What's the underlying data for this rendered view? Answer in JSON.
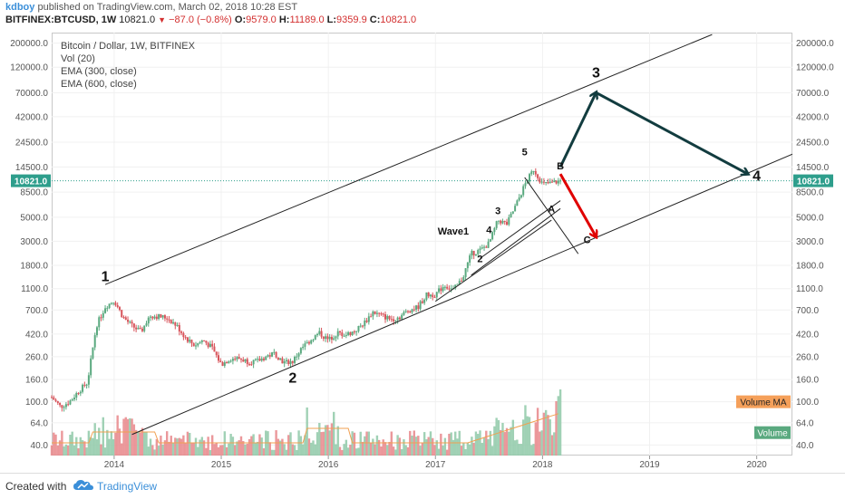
{
  "header": {
    "author": "kdboy",
    "published_text": "published on TradingView.com, March 02, 2018 10:28 EST",
    "symbol": "BITFINEX:BTCUSD, 1W",
    "last_value": "10821.0",
    "change": "−87.0 (−0.8%)",
    "ohlc_open_label": "O:",
    "ohlc_open": "9579.0",
    "ohlc_high_label": "H:",
    "ohlc_high": "11189.0",
    "ohlc_low_label": "L:",
    "ohlc_low": "9359.9",
    "ohlc_close_label": "C:",
    "ohlc_close": "10821.0"
  },
  "legend": {
    "title": "Bitcoin / Dollar, 1W, BITFINEX",
    "vol": "Vol (20)",
    "ema300": "EMA (300, close)",
    "ema600": "EMA (600, close)"
  },
  "footer": {
    "created_with": "Created with",
    "brand": "TradingView"
  },
  "colors": {
    "up": "#8fc9a8",
    "down": "#e8868a",
    "arrow_up": "#123c3f",
    "arrow_down": "#e00000",
    "price_line": "#2e9e8c",
    "vol_ma": "#f0a050",
    "ema300": "#f0a050",
    "ema600": "#86b4e6"
  },
  "chart_data": {
    "type": "candlestick",
    "title": "Bitcoin / Dollar, 1W, BITFINEX",
    "y_scale": "log",
    "ylim": [
      32,
      250000
    ],
    "y_ticks": [
      "200000.0",
      "120000.0",
      "70000.0",
      "42000.0",
      "24500.0",
      "14500.0",
      "8500.0",
      "5000.0",
      "3000.0",
      "1800.0",
      "1100.0",
      "700.0",
      "420.0",
      "260.0",
      "160.0",
      "100.0",
      "64.0",
      "40.0"
    ],
    "x_ticks": [
      "2014",
      "2015",
      "2016",
      "2017",
      "2018",
      "2019",
      "2020"
    ],
    "xlim": [
      "2013-06",
      "2020-05"
    ],
    "current_price_label": "10821.0",
    "price_path": [
      [
        "2013-06",
        110
      ],
      [
        "2013-07",
        90
      ],
      [
        "2013-08",
        100
      ],
      [
        "2013-09",
        125
      ],
      [
        "2013-10",
        150
      ],
      [
        "2013-11",
        500
      ],
      [
        "2013-12",
        750
      ],
      [
        "2014-01",
        860
      ],
      [
        "2014-02",
        600
      ],
      [
        "2014-03",
        500
      ],
      [
        "2014-04",
        440
      ],
      [
        "2014-05",
        620
      ],
      [
        "2014-06",
        610
      ],
      [
        "2014-07",
        590
      ],
      [
        "2014-08",
        500
      ],
      [
        "2014-09",
        390
      ],
      [
        "2014-10",
        330
      ],
      [
        "2014-11",
        370
      ],
      [
        "2014-12",
        310
      ],
      [
        "2015-01",
        220
      ],
      [
        "2015-02",
        250
      ],
      [
        "2015-03",
        250
      ],
      [
        "2015-04",
        235
      ],
      [
        "2015-05",
        235
      ],
      [
        "2015-06",
        260
      ],
      [
        "2015-07",
        280
      ],
      [
        "2015-08",
        230
      ],
      [
        "2015-09",
        235
      ],
      [
        "2015-10",
        310
      ],
      [
        "2015-11",
        370
      ],
      [
        "2015-12",
        430
      ],
      [
        "2016-01",
        370
      ],
      [
        "2016-02",
        430
      ],
      [
        "2016-03",
        415
      ],
      [
        "2016-04",
        450
      ],
      [
        "2016-05",
        530
      ],
      [
        "2016-06",
        670
      ],
      [
        "2016-07",
        620
      ],
      [
        "2016-08",
        575
      ],
      [
        "2016-09",
        605
      ],
      [
        "2016-10",
        700
      ],
      [
        "2016-11",
        740
      ],
      [
        "2016-12",
        960
      ],
      [
        "2017-01",
        970
      ],
      [
        "2017-02",
        1190
      ],
      [
        "2017-03",
        1070
      ],
      [
        "2017-04",
        1350
      ],
      [
        "2017-05",
        2300
      ],
      [
        "2017-06",
        2480
      ],
      [
        "2017-07",
        2870
      ],
      [
        "2017-08",
        4700
      ],
      [
        "2017-09",
        4330
      ],
      [
        "2017-10",
        6400
      ],
      [
        "2017-11",
        9900
      ],
      [
        "2017-12",
        13800
      ],
      [
        "2018-01",
        10100
      ],
      [
        "2018-02",
        10300
      ],
      [
        "2018-03",
        10821
      ]
    ],
    "volume_ma_label": "Volume MA",
    "volume_label": "Volume",
    "annotations": [
      {
        "text": "1",
        "date": "2013-12",
        "price": 1290,
        "bold": true
      },
      {
        "text": "2",
        "date": "2015-09",
        "price": 150,
        "bold": true
      },
      {
        "text": "3",
        "date": "2018-07",
        "price": 97000,
        "bold": true
      },
      {
        "text": "4",
        "date": "2020-01",
        "price": 10821,
        "bold": true
      },
      {
        "text": "5",
        "date": "2017-11",
        "price": 18500,
        "bold": false
      },
      {
        "text": "Wave1",
        "date": "2017-03",
        "price": 3450,
        "bold": false
      },
      {
        "text": "3",
        "date": "2017-08",
        "price": 5350,
        "bold": false
      },
      {
        "text": "4",
        "date": "2017-07",
        "price": 3570,
        "bold": false
      },
      {
        "text": "2",
        "date": "2017-06",
        "price": 1930,
        "bold": false
      },
      {
        "text": "A",
        "date": "2018-02",
        "price": 5550,
        "bold": false
      },
      {
        "text": "B",
        "date": "2018-03",
        "price": 13800,
        "bold": false
      },
      {
        "text": "C",
        "date": "2018-06",
        "price": 2890,
        "bold": false
      }
    ],
    "trendlines": [
      {
        "from": [
          "2013-12",
          1200
        ],
        "to": [
          "2019-08",
          240000
        ]
      },
      {
        "from": [
          "2014-03",
          50
        ],
        "to": [
          "2020-05",
          19000
        ]
      },
      {
        "from": [
          "2017-01",
          840
        ],
        "to": [
          "2018-02",
          4700
        ]
      },
      {
        "from": [
          "2017-05",
          1460
        ],
        "to": [
          "2018-03",
          6000
        ]
      },
      {
        "from": [
          "2017-06",
          2090
        ],
        "to": [
          "2018-03",
          7100
        ]
      },
      {
        "from": [
          "2017-11",
          11600
        ],
        "to": [
          "2018-05",
          2300
        ]
      }
    ],
    "arrows": [
      {
        "from": [
          "2018-03",
          14500
        ],
        "to": [
          "2018-07",
          70000
        ],
        "color": "up"
      },
      {
        "from": [
          "2018-07",
          70000
        ],
        "to": [
          "2019-12",
          12500
        ],
        "color": "up"
      },
      {
        "from": [
          "2018-03",
          12500
        ],
        "to": [
          "2018-07",
          3300
        ],
        "color": "down"
      }
    ]
  }
}
